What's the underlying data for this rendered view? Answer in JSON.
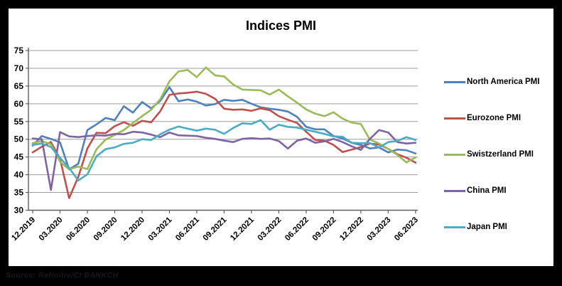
{
  "window": {
    "background": "#000000",
    "panel_background": "#FFFFFF"
  },
  "title": "Indices PMI",
  "source_note": "Source: Refinitiv/CI BANKCH",
  "chart_data": {
    "type": "line",
    "title": "Indices PMI",
    "xlabel": "",
    "ylabel": "",
    "ylim": [
      30,
      75
    ],
    "y_ticks": [
      75,
      70,
      65,
      60,
      55,
      50,
      45,
      40,
      35,
      30
    ],
    "grid": true,
    "gridline_color": "#9C9C9C",
    "axis_color": "#5F5F5F",
    "tick_label_color": "#000000",
    "legend_position": "right",
    "x_tick_labels": [
      "12.2019",
      "03.2020",
      "06.2020",
      "09.2020",
      "12.2020",
      "03.2021",
      "06.2021",
      "09.2021",
      "12.2021",
      "03.2022",
      "06.2022",
      "09.2022",
      "12.2022",
      "03.2023",
      "06.2023"
    ],
    "x": [
      "12.2019",
      "01.2020",
      "02.2020",
      "03.2020",
      "04.2020",
      "05.2020",
      "06.2020",
      "07.2020",
      "08.2020",
      "09.2020",
      "10.2020",
      "11.2020",
      "12.2020",
      "01.2021",
      "02.2021",
      "03.2021",
      "04.2021",
      "05.2021",
      "06.2021",
      "07.2021",
      "08.2021",
      "09.2021",
      "10.2021",
      "11.2021",
      "12.2021",
      "01.2022",
      "02.2022",
      "03.2022",
      "04.2022",
      "05.2022",
      "06.2022",
      "07.2022",
      "08.2022",
      "09.2022",
      "10.2022",
      "11.2022",
      "12.2022",
      "01.2023",
      "02.2023",
      "03.2023",
      "04.2023",
      "05.2023",
      "06.2023"
    ],
    "series": [
      {
        "name": "North America PMI",
        "color": "#4F81BD",
        "values": [
          48.2,
          50.9,
          50.1,
          49.1,
          41.5,
          43.1,
          52.6,
          54.2,
          56.0,
          55.4,
          59.3,
          57.5,
          60.5,
          58.7,
          60.8,
          64.7,
          60.7,
          61.2,
          60.6,
          59.5,
          59.9,
          61.1,
          60.8,
          61.1,
          60.0,
          59.0,
          58.6,
          58.3,
          57.8,
          56.3,
          53.5,
          52.8,
          52.8,
          50.9,
          50.2,
          49.0,
          48.4,
          47.4,
          47.7,
          46.3,
          47.1,
          46.9,
          46.0
        ]
      },
      {
        "name": "Eurozone PMI",
        "color": "#C0504D",
        "values": [
          46.3,
          47.9,
          49.2,
          44.5,
          33.4,
          39.4,
          47.4,
          51.8,
          51.7,
          53.7,
          54.8,
          53.8,
          55.2,
          54.8,
          57.9,
          62.5,
          62.9,
          63.1,
          63.4,
          62.8,
          61.4,
          58.6,
          58.3,
          58.4,
          58.0,
          58.7,
          58.2,
          56.5,
          55.5,
          54.6,
          52.1,
          49.8,
          49.6,
          48.4,
          46.4,
          47.1,
          47.8,
          48.8,
          48.5,
          47.3,
          45.8,
          44.8,
          43.4
        ]
      },
      {
        "name": "Swistzerland PMI",
        "color": "#9BBB59",
        "values": [
          48.9,
          49.5,
          48.6,
          43.7,
          41.5,
          42.3,
          41.6,
          47.2,
          49.9,
          51.2,
          52.6,
          54.6,
          56.5,
          58.3,
          61.3,
          66.3,
          69.1,
          69.5,
          67.5,
          70.2,
          68.0,
          67.7,
          65.4,
          64.0,
          63.9,
          63.8,
          62.6,
          64.0,
          62.1,
          60.3,
          58.4,
          57.2,
          56.5,
          57.6,
          55.8,
          54.7,
          54.3,
          49.9,
          48.8,
          47.3,
          45.6,
          43.5,
          44.9
        ]
      },
      {
        "name": "China PMI",
        "color": "#8064A2",
        "values": [
          50.2,
          50.0,
          35.7,
          52.0,
          50.8,
          50.6,
          50.9,
          51.1,
          51.0,
          51.5,
          51.4,
          52.1,
          51.9,
          51.3,
          50.6,
          51.9,
          51.1,
          51.0,
          50.9,
          50.4,
          50.1,
          49.6,
          49.2,
          50.1,
          50.3,
          50.1,
          50.2,
          49.5,
          47.4,
          49.6,
          50.2,
          49.0,
          49.4,
          50.1,
          49.2,
          48.0,
          47.0,
          50.1,
          52.6,
          51.9,
          49.2,
          48.8,
          49.0
        ]
      },
      {
        "name": "Japan PMI",
        "color": "#4BACC6",
        "values": [
          48.4,
          48.8,
          47.8,
          44.8,
          41.9,
          38.4,
          40.1,
          45.2,
          47.2,
          47.7,
          48.7,
          49.0,
          50.0,
          49.8,
          51.4,
          52.7,
          53.6,
          53.0,
          52.4,
          53.0,
          52.7,
          51.5,
          53.2,
          54.5,
          54.3,
          55.4,
          52.7,
          54.1,
          53.5,
          53.3,
          52.7,
          52.1,
          51.5,
          50.8,
          50.7,
          49.0,
          48.9,
          48.9,
          47.7,
          49.2,
          49.5,
          50.6,
          49.8
        ]
      }
    ]
  }
}
